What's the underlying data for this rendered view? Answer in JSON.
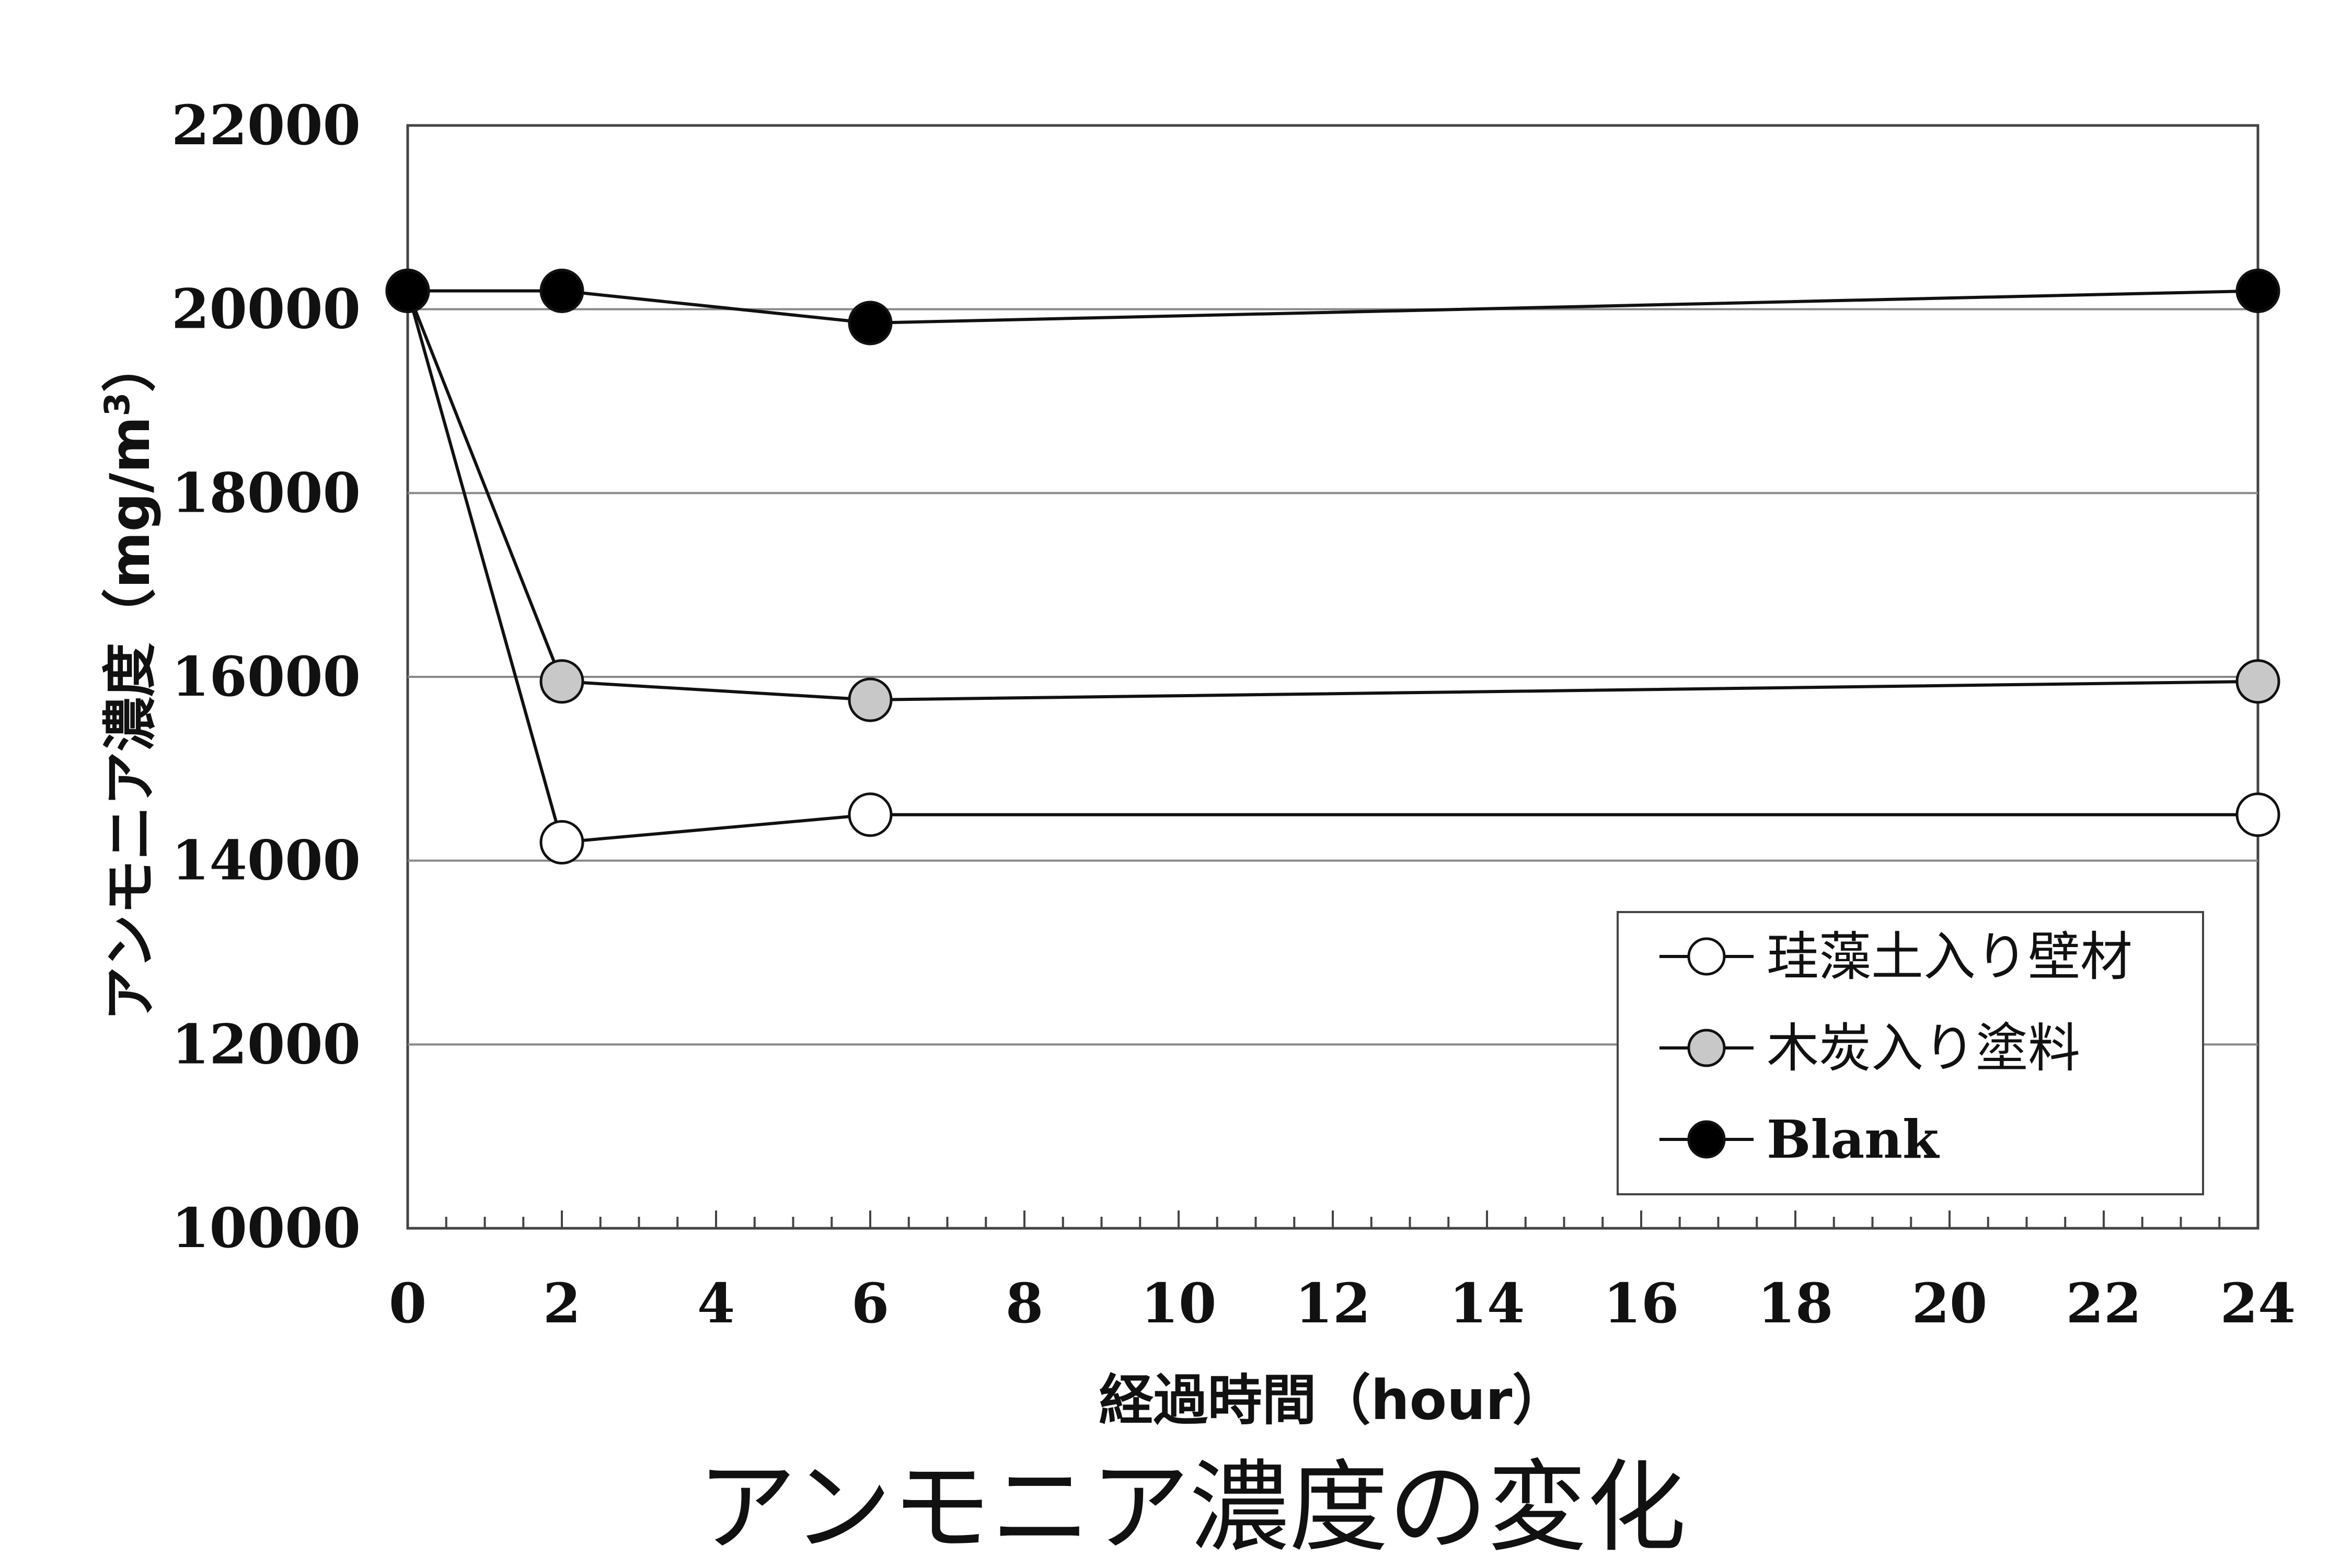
{
  "chart_data": {
    "type": "line",
    "title": "アンモニア濃度の変化",
    "xlabel": "経過時間（hour）",
    "ylabel": "アンモニア濃度（mg/m",
    "ylabel_superscript": "3",
    "ylabel_close": "）",
    "xlim": [
      0,
      24
    ],
    "ylim": [
      10000,
      22000
    ],
    "xticks": [
      0,
      2,
      4,
      6,
      8,
      10,
      12,
      14,
      16,
      18,
      20,
      22,
      24
    ],
    "yticks": [
      10000,
      12000,
      14000,
      16000,
      18000,
      20000,
      22000
    ],
    "grid": "horizontal",
    "legend_position": "bottom-right",
    "series": [
      {
        "name": "珪藻土入り壁材",
        "marker": "open-circle",
        "fill": "#ffffff",
        "x": [
          0,
          2,
          6,
          24
        ],
        "y": [
          20200,
          14200,
          14500,
          14500
        ]
      },
      {
        "name": "木炭入り塗料",
        "marker": "gray-circle",
        "fill": "#c8c8c8",
        "x": [
          0,
          2,
          6,
          24
        ],
        "y": [
          20200,
          15950,
          15750,
          15950
        ]
      },
      {
        "name": "Blank",
        "marker": "black-circle",
        "fill": "#000000",
        "x": [
          0,
          2,
          6,
          24
        ],
        "y": [
          20200,
          20200,
          19850,
          20200
        ]
      }
    ]
  }
}
